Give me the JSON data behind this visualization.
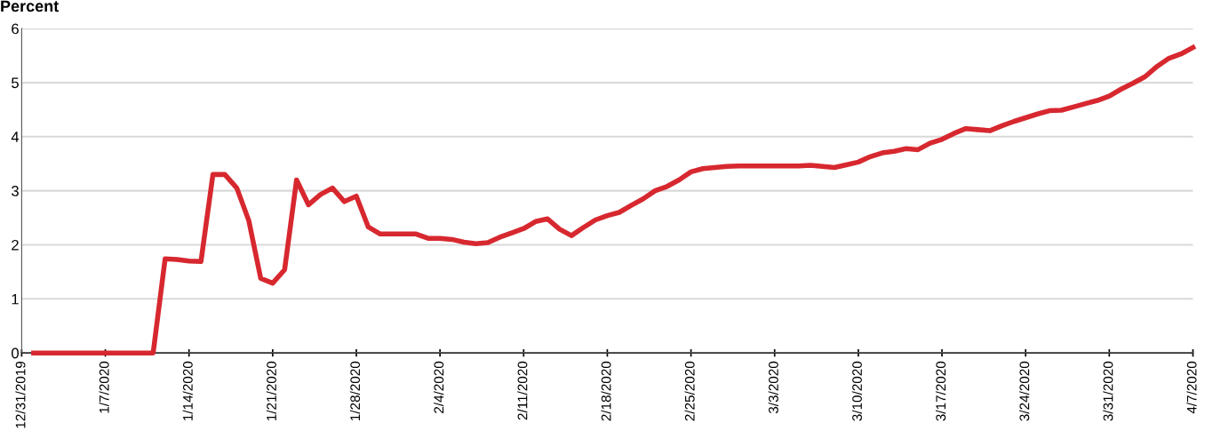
{
  "chart_data": {
    "type": "line",
    "ylabel": "Percent",
    "x": [
      "2020-01-01",
      "2020-01-02",
      "2020-01-03",
      "2020-01-04",
      "2020-01-05",
      "2020-01-06",
      "2020-01-07",
      "2020-01-08",
      "2020-01-09",
      "2020-01-10",
      "2020-01-11",
      "2020-01-12",
      "2020-01-13",
      "2020-01-14",
      "2020-01-15",
      "2020-01-16",
      "2020-01-17",
      "2020-01-18",
      "2020-01-19",
      "2020-01-20",
      "2020-01-21",
      "2020-01-22",
      "2020-01-23",
      "2020-01-24",
      "2020-01-25",
      "2020-01-26",
      "2020-01-27",
      "2020-01-28",
      "2020-01-29",
      "2020-01-30",
      "2020-01-31",
      "2020-02-01",
      "2020-02-02",
      "2020-02-03",
      "2020-02-04",
      "2020-02-05",
      "2020-02-06",
      "2020-02-07",
      "2020-02-08",
      "2020-02-09",
      "2020-02-10",
      "2020-02-11",
      "2020-02-12",
      "2020-02-13",
      "2020-02-14",
      "2020-02-15",
      "2020-02-16",
      "2020-02-17",
      "2020-02-18",
      "2020-02-19",
      "2020-02-20",
      "2020-02-21",
      "2020-02-22",
      "2020-02-23",
      "2020-02-24",
      "2020-02-25",
      "2020-02-26",
      "2020-02-27",
      "2020-02-28",
      "2020-02-29",
      "2020-03-01",
      "2020-03-02",
      "2020-03-03",
      "2020-03-04",
      "2020-03-05",
      "2020-03-06",
      "2020-03-07",
      "2020-03-08",
      "2020-03-09",
      "2020-03-10",
      "2020-03-11",
      "2020-03-12",
      "2020-03-13",
      "2020-03-14",
      "2020-03-15",
      "2020-03-16",
      "2020-03-17",
      "2020-03-18",
      "2020-03-19",
      "2020-03-20",
      "2020-03-21",
      "2020-03-22",
      "2020-03-23",
      "2020-03-24",
      "2020-03-25",
      "2020-03-26",
      "2020-03-27",
      "2020-03-28",
      "2020-03-29",
      "2020-03-30",
      "2020-03-31",
      "2020-04-01",
      "2020-04-02",
      "2020-04-03",
      "2020-04-04",
      "2020-04-05",
      "2020-04-06",
      "2020-04-07"
    ],
    "series": [
      {
        "color": "#d7282f",
        "values": [
          0,
          0,
          0,
          0,
          0,
          0,
          0,
          0,
          0,
          0,
          0,
          1.74,
          1.73,
          1.7,
          1.69,
          3.3,
          3.3,
          3.05,
          2.45,
          1.38,
          1.29,
          1.54,
          3.2,
          2.74,
          2.93,
          3.05,
          2.8,
          2.9,
          2.33,
          2.2,
          2.2,
          2.2,
          2.2,
          2.12,
          2.12,
          2.1,
          2.05,
          2.02,
          2.04,
          2.14,
          2.22,
          2.3,
          2.43,
          2.48,
          2.29,
          2.17,
          2.32,
          2.46,
          2.54,
          2.6,
          2.73,
          2.85,
          3.0,
          3.08,
          3.2,
          3.35,
          3.41,
          3.43,
          3.45,
          3.46,
          3.46,
          3.46,
          3.46,
          3.46,
          3.46,
          3.47,
          3.45,
          3.43,
          3.48,
          3.53,
          3.63,
          3.7,
          3.73,
          3.78,
          3.76,
          3.88,
          3.95,
          4.06,
          4.15,
          4.13,
          4.11,
          4.2,
          4.28,
          4.35,
          4.42,
          4.48,
          4.49,
          4.55,
          4.61,
          4.67,
          4.75,
          4.88,
          4.99,
          5.11,
          5.3,
          5.45,
          5.53,
          5.65
        ]
      }
    ],
    "xlim": [
      "2019-12-31",
      "2020-04-07"
    ],
    "xticks": [
      {
        "value": "2019-12-31",
        "label": "12/31/2019"
      },
      {
        "value": "2020-01-07",
        "label": "1/7/2020"
      },
      {
        "value": "2020-01-14",
        "label": "1/14/2020"
      },
      {
        "value": "2020-01-21",
        "label": "1/21/2020"
      },
      {
        "value": "2020-01-28",
        "label": "1/28/2020"
      },
      {
        "value": "2020-02-04",
        "label": "2/4/2020"
      },
      {
        "value": "2020-02-11",
        "label": "2/11/2020"
      },
      {
        "value": "2020-02-18",
        "label": "2/18/2020"
      },
      {
        "value": "2020-02-25",
        "label": "2/25/2020"
      },
      {
        "value": "2020-03-03",
        "label": "3/3/2020"
      },
      {
        "value": "2020-03-10",
        "label": "3/10/2020"
      },
      {
        "value": "2020-03-17",
        "label": "3/17/2020"
      },
      {
        "value": "2020-03-24",
        "label": "3/24/2020"
      },
      {
        "value": "2020-03-31",
        "label": "3/31/2020"
      },
      {
        "value": "2020-04-07",
        "label": "4/7/2020"
      }
    ],
    "ylim": [
      0,
      6
    ],
    "yticks": [
      0,
      1,
      2,
      3,
      4,
      5,
      6
    ],
    "grid": "y",
    "line_style": "solid",
    "marker": "none"
  }
}
